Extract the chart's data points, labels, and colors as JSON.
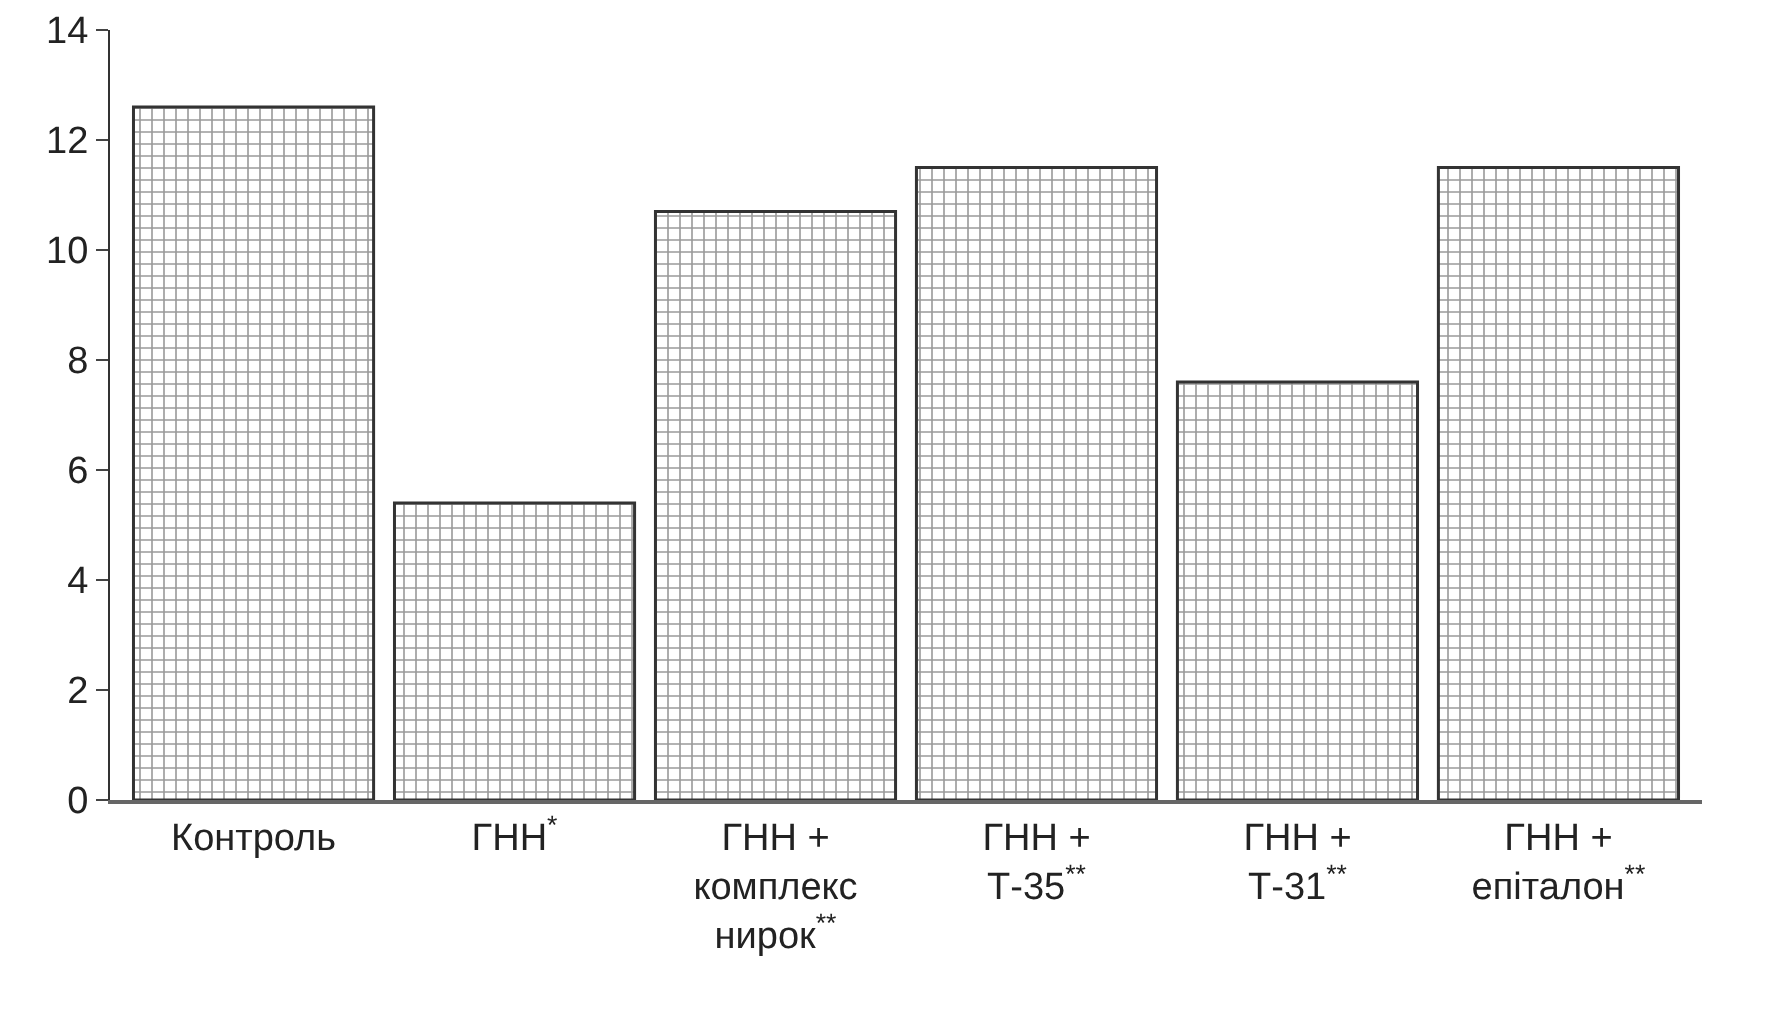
{
  "chart_data": {
    "type": "bar",
    "categories": [
      "Контроль",
      "ГНН$^{*}$",
      "ГНН +\nкомплекс\nнирок$^{**}$",
      "ГНН +\nТ-35$^{**}$",
      "ГНН +\nТ-31$^{**}$",
      "ГНН +\nепіталон$^{**}$"
    ],
    "values": [
      12.6,
      5.4,
      10.7,
      11.5,
      7.6,
      11.5
    ],
    "color": "#333333",
    "ylim": [
      0,
      14
    ],
    "yticks": [
      0,
      2,
      4,
      6,
      8,
      10,
      12,
      14
    ],
    "grid": false
  }
}
